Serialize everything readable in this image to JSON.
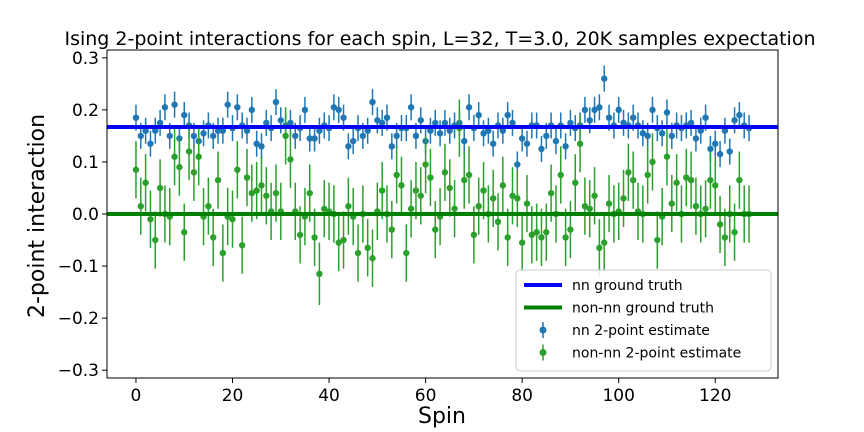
{
  "chart_data": {
    "type": "scatter",
    "title": "Ising 2-point interactions for each spin, L=32, T=3.0, 20K samples expectation",
    "xlabel": "Spin",
    "ylabel": "2-point interaction",
    "xlim": [
      -6,
      133
    ],
    "ylim": [
      -0.315,
      0.315
    ],
    "xticks": [
      0,
      20,
      40,
      60,
      80,
      100,
      120
    ],
    "xtick_labels": [
      "0",
      "20",
      "40",
      "60",
      "80",
      "100",
      "120"
    ],
    "yticks": [
      -0.3,
      -0.2,
      -0.1,
      0.0,
      0.1,
      0.2,
      0.3
    ],
    "ytick_labels": [
      "−0.3",
      "−0.2",
      "−0.1",
      "0.0",
      "0.1",
      "0.2",
      "0.3"
    ],
    "grid": false,
    "legend_position": "bottom-right",
    "reference_lines": [
      {
        "name": "nn ground truth",
        "y": 0.167,
        "color": "#0000ff"
      },
      {
        "name": "non-nn ground truth",
        "y": 0.0,
        "color": "#008000"
      }
    ],
    "series": [
      {
        "name": "nn 2-point estimate",
        "color": "#1f77b4",
        "x": [
          0,
          1,
          2,
          3,
          4,
          5,
          6,
          7,
          8,
          9,
          10,
          11,
          12,
          13,
          14,
          15,
          16,
          17,
          18,
          19,
          20,
          21,
          22,
          23,
          24,
          25,
          26,
          27,
          28,
          29,
          30,
          31,
          32,
          33,
          34,
          35,
          36,
          37,
          38,
          39,
          40,
          41,
          42,
          43,
          44,
          45,
          46,
          47,
          48,
          49,
          50,
          51,
          52,
          53,
          54,
          55,
          56,
          57,
          58,
          59,
          60,
          61,
          62,
          63,
          64,
          65,
          66,
          67,
          68,
          69,
          70,
          71,
          72,
          73,
          74,
          75,
          76,
          77,
          78,
          79,
          80,
          81,
          82,
          83,
          84,
          85,
          86,
          87,
          88,
          89,
          90,
          91,
          92,
          93,
          94,
          95,
          96,
          97,
          98,
          99,
          100,
          101,
          102,
          103,
          104,
          105,
          106,
          107,
          108,
          109,
          110,
          111,
          112,
          113,
          114,
          115,
          116,
          117,
          118,
          119,
          120,
          121,
          122,
          123,
          124,
          125,
          126,
          127
        ],
        "y": [
          0.185,
          0.15,
          0.16,
          0.135,
          0.16,
          0.175,
          0.205,
          0.15,
          0.21,
          0.145,
          0.19,
          0.17,
          0.15,
          0.14,
          0.155,
          0.17,
          0.15,
          0.16,
          0.16,
          0.21,
          0.165,
          0.205,
          0.17,
          0.16,
          0.2,
          0.135,
          0.13,
          0.175,
          0.165,
          0.215,
          0.18,
          0.17,
          0.175,
          0.15,
          0.165,
          0.2,
          0.145,
          0.145,
          0.16,
          0.17,
          0.165,
          0.205,
          0.2,
          0.185,
          0.13,
          0.14,
          0.165,
          0.15,
          0.16,
          0.215,
          0.18,
          0.175,
          0.185,
          0.13,
          0.15,
          0.165,
          0.165,
          0.205,
          0.15,
          0.18,
          0.14,
          0.16,
          0.175,
          0.155,
          0.175,
          0.16,
          0.17,
          0.175,
          0.14,
          0.205,
          0.165,
          0.19,
          0.155,
          0.16,
          0.135,
          0.17,
          0.16,
          0.19,
          0.175,
          0.095,
          0.145,
          0.135,
          0.17,
          0.17,
          0.125,
          0.15,
          0.17,
          0.14,
          0.17,
          0.13,
          0.175,
          0.165,
          0.17,
          0.2,
          0.18,
          0.2,
          0.205,
          0.26,
          0.185,
          0.17,
          0.2,
          0.175,
          0.17,
          0.185,
          0.17,
          0.155,
          0.15,
          0.2,
          0.165,
          0.155,
          0.195,
          0.15,
          0.17,
          0.165,
          0.17,
          0.175,
          0.145,
          0.16,
          0.185,
          0.125,
          0.135,
          0.115,
          0.16,
          0.12,
          0.18,
          0.19,
          0.17,
          0.165
        ],
        "yerr": [
          0.025,
          0.025,
          0.025,
          0.025,
          0.025,
          0.025,
          0.025,
          0.025,
          0.025,
          0.025,
          0.025,
          0.025,
          0.025,
          0.025,
          0.025,
          0.025,
          0.025,
          0.025,
          0.025,
          0.025,
          0.025,
          0.025,
          0.025,
          0.025,
          0.025,
          0.025,
          0.025,
          0.025,
          0.025,
          0.025,
          0.025,
          0.025,
          0.025,
          0.025,
          0.025,
          0.025,
          0.025,
          0.025,
          0.025,
          0.025,
          0.025,
          0.025,
          0.025,
          0.025,
          0.025,
          0.025,
          0.025,
          0.025,
          0.025,
          0.025,
          0.025,
          0.025,
          0.025,
          0.025,
          0.025,
          0.025,
          0.025,
          0.025,
          0.025,
          0.025,
          0.025,
          0.025,
          0.025,
          0.025,
          0.025,
          0.025,
          0.025,
          0.025,
          0.025,
          0.025,
          0.025,
          0.025,
          0.025,
          0.025,
          0.025,
          0.025,
          0.025,
          0.025,
          0.025,
          0.025,
          0.025,
          0.025,
          0.025,
          0.025,
          0.025,
          0.025,
          0.025,
          0.025,
          0.025,
          0.025,
          0.025,
          0.025,
          0.025,
          0.025,
          0.025,
          0.025,
          0.025,
          0.025,
          0.025,
          0.025,
          0.025,
          0.025,
          0.025,
          0.025,
          0.025,
          0.025,
          0.025,
          0.025,
          0.025,
          0.025,
          0.025,
          0.025,
          0.025,
          0.025,
          0.025,
          0.025,
          0.025,
          0.025,
          0.025,
          0.025,
          0.025,
          0.025,
          0.025,
          0.025,
          0.025,
          0.025,
          0.025,
          0.025
        ]
      },
      {
        "name": "non-nn 2-point estimate",
        "color": "#2ca02c",
        "x": [
          0,
          1,
          2,
          3,
          4,
          5,
          6,
          7,
          8,
          9,
          10,
          11,
          12,
          13,
          14,
          15,
          16,
          17,
          18,
          19,
          20,
          21,
          22,
          23,
          24,
          25,
          26,
          27,
          28,
          29,
          30,
          31,
          32,
          33,
          34,
          35,
          36,
          37,
          38,
          39,
          40,
          41,
          42,
          43,
          44,
          45,
          46,
          47,
          48,
          49,
          50,
          51,
          52,
          53,
          54,
          55,
          56,
          57,
          58,
          59,
          60,
          61,
          62,
          63,
          64,
          65,
          66,
          67,
          68,
          69,
          70,
          71,
          72,
          73,
          74,
          75,
          76,
          77,
          78,
          79,
          80,
          81,
          82,
          83,
          84,
          85,
          86,
          87,
          88,
          89,
          90,
          91,
          92,
          93,
          94,
          95,
          96,
          97,
          98,
          99,
          100,
          101,
          102,
          103,
          104,
          105,
          106,
          107,
          108,
          109,
          110,
          111,
          112,
          113,
          114,
          115,
          116,
          117,
          118,
          119,
          120,
          121,
          122,
          123,
          124,
          125,
          126,
          127
        ],
        "y": [
          0.085,
          0.015,
          0.06,
          -0.01,
          -0.05,
          0.05,
          0.0,
          -0.005,
          0.11,
          0.09,
          -0.035,
          0.12,
          0.08,
          0.11,
          -0.005,
          0.015,
          -0.045,
          0.065,
          -0.075,
          -0.005,
          -0.01,
          0.085,
          -0.06,
          0.07,
          0.04,
          0.045,
          0.055,
          0.035,
          0.005,
          0.04,
          0.005,
          0.15,
          0.105,
          0.005,
          -0.04,
          -0.005,
          0.04,
          -0.045,
          -0.115,
          0.01,
          0.005,
          0.0,
          -0.055,
          -0.05,
          0.015,
          -0.005,
          -0.075,
          0.0,
          -0.065,
          -0.085,
          0.005,
          0.045,
          0.0,
          -0.03,
          0.075,
          0.055,
          -0.075,
          0.01,
          0.045,
          0.035,
          0.095,
          0.07,
          -0.03,
          -0.005,
          0.08,
          0.05,
          0.01,
          0.165,
          0.065,
          0.075,
          -0.04,
          0.015,
          0.045,
          0.0,
          0.03,
          -0.015,
          0.055,
          -0.045,
          0.035,
          0.03,
          -0.055,
          0.02,
          -0.04,
          -0.035,
          -0.045,
          -0.035,
          0.04,
          0.0,
          0.075,
          -0.045,
          -0.03,
          0.06,
          0.135,
          0.015,
          0.01,
          0.035,
          -0.065,
          -0.055,
          0.02,
          0.0,
          0.005,
          0.03,
          0.08,
          0.065,
          0.005,
          0.0,
          0.075,
          0.1,
          -0.05,
          -0.005,
          0.11,
          0.02,
          0.06,
          0.0,
          0.07,
          0.065,
          0.015,
          0.0,
          0.01,
          0.065,
          0.055,
          -0.02,
          -0.045,
          0.0,
          -0.035,
          0.065,
          0.0,
          0.0
        ],
        "yerr": [
          0.055,
          0.055,
          0.055,
          0.055,
          0.055,
          0.055,
          0.055,
          0.055,
          0.055,
          0.055,
          0.055,
          0.055,
          0.055,
          0.055,
          0.055,
          0.055,
          0.055,
          0.055,
          0.055,
          0.055,
          0.055,
          0.055,
          0.055,
          0.055,
          0.055,
          0.055,
          0.055,
          0.055,
          0.055,
          0.055,
          0.055,
          0.055,
          0.055,
          0.055,
          0.055,
          0.055,
          0.055,
          0.055,
          0.06,
          0.055,
          0.055,
          0.055,
          0.055,
          0.055,
          0.055,
          0.055,
          0.055,
          0.055,
          0.055,
          0.055,
          0.055,
          0.055,
          0.055,
          0.055,
          0.055,
          0.055,
          0.055,
          0.055,
          0.055,
          0.055,
          0.055,
          0.055,
          0.055,
          0.055,
          0.055,
          0.055,
          0.055,
          0.055,
          0.055,
          0.055,
          0.055,
          0.055,
          0.055,
          0.055,
          0.055,
          0.055,
          0.055,
          0.055,
          0.055,
          0.055,
          0.055,
          0.055,
          0.055,
          0.055,
          0.055,
          0.055,
          0.055,
          0.055,
          0.055,
          0.055,
          0.055,
          0.055,
          0.055,
          0.055,
          0.055,
          0.055,
          0.055,
          0.055,
          0.055,
          0.055,
          0.055,
          0.055,
          0.055,
          0.055,
          0.055,
          0.055,
          0.055,
          0.055,
          0.055,
          0.055,
          0.055,
          0.055,
          0.055,
          0.055,
          0.055,
          0.055,
          0.055,
          0.055,
          0.055,
          0.055,
          0.055,
          0.055,
          0.055,
          0.055,
          0.055,
          0.055,
          0.055,
          0.055
        ]
      }
    ],
    "legend_entries": [
      "nn ground truth",
      "non-nn ground truth",
      "nn 2-point estimate",
      "non-nn 2-point estimate"
    ]
  }
}
